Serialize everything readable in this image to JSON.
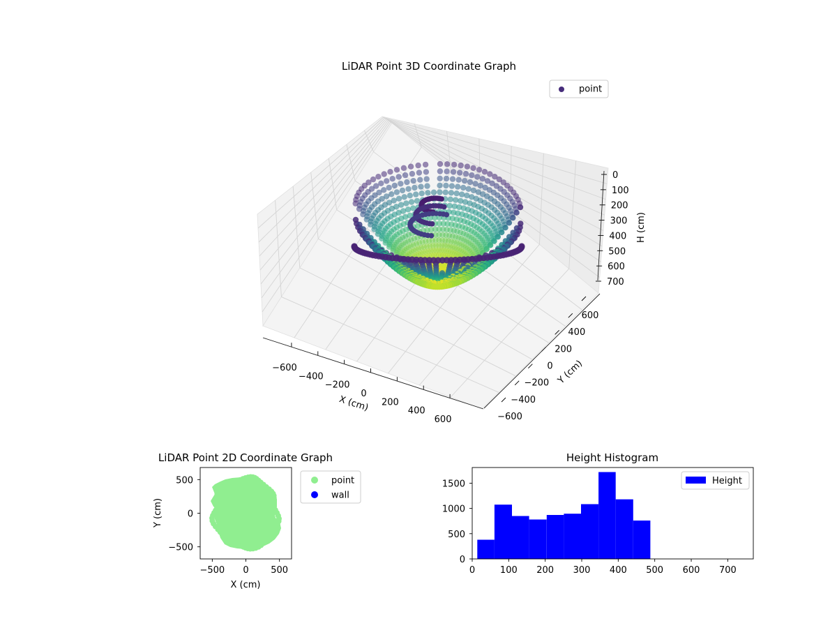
{
  "chart_data": [
    {
      "type": "scatter",
      "projection": "3d",
      "title": "LiDAR Point 3D Coordinate Graph",
      "xlabel": "X (cm)",
      "ylabel": "Y (cm)",
      "zlabel": "H (cm)",
      "x_ticks": [
        "−600",
        "−400",
        "−200",
        "0",
        "200",
        "400",
        "600"
      ],
      "y_ticks": [
        "−600",
        "−400",
        "−200",
        "0",
        "200",
        "400",
        "600"
      ],
      "z_ticks": [
        "0",
        "100",
        "200",
        "300",
        "400",
        "500",
        "600",
        "700"
      ],
      "xlim": [
        -650,
        650
      ],
      "ylim": [
        -650,
        650
      ],
      "zlim": [
        760,
        0
      ],
      "z_inverted": true,
      "colormap": "viridis",
      "grid": true,
      "legend": {
        "position": "top-right",
        "entries": [
          {
            "label": "point",
            "color": "#472d7b"
          }
        ]
      }
    },
    {
      "type": "scatter",
      "title": "LiDAR Point 2D Coordinate Graph",
      "xlabel": "X (cm)",
      "ylabel": "Y (cm)",
      "x_ticks": [
        "−500",
        "0",
        "500"
      ],
      "y_ticks": [
        "500",
        "0",
        "−500"
      ],
      "xlim": [
        -680,
        680
      ],
      "ylim": [
        -680,
        680
      ],
      "approx_extent": {
        "x": [
          -520,
          520
        ],
        "y": [
          -540,
          520
        ]
      },
      "legend": {
        "position": "outside-right",
        "entries": [
          {
            "label": "point",
            "color": "#90ee90"
          },
          {
            "label": "wall",
            "color": "#0000ff"
          }
        ]
      }
    },
    {
      "type": "bar",
      "subtype": "histogram",
      "title": "Height Histogram",
      "x_ticks": [
        "0",
        "100",
        "200",
        "300",
        "400",
        "500",
        "600",
        "700"
      ],
      "y_ticks": [
        "0",
        "500",
        "1000",
        "1500"
      ],
      "xlim": [
        0,
        770
      ],
      "ylim": [
        0,
        1810
      ],
      "bar_color": "#0000ff",
      "bins": [
        {
          "x0": 14,
          "x1": 61,
          "count": 380
        },
        {
          "x0": 61,
          "x1": 109,
          "count": 1075
        },
        {
          "x0": 109,
          "x1": 156,
          "count": 850
        },
        {
          "x0": 156,
          "x1": 204,
          "count": 780
        },
        {
          "x0": 204,
          "x1": 251,
          "count": 870
        },
        {
          "x0": 251,
          "x1": 298,
          "count": 895
        },
        {
          "x0": 298,
          "x1": 346,
          "count": 1085
        },
        {
          "x0": 346,
          "x1": 393,
          "count": 1720
        },
        {
          "x0": 393,
          "x1": 441,
          "count": 1180
        },
        {
          "x0": 441,
          "x1": 488,
          "count": 760
        }
      ],
      "legend": {
        "position": "top-right",
        "entries": [
          {
            "label": "Height",
            "color": "#0000ff"
          }
        ]
      }
    }
  ]
}
